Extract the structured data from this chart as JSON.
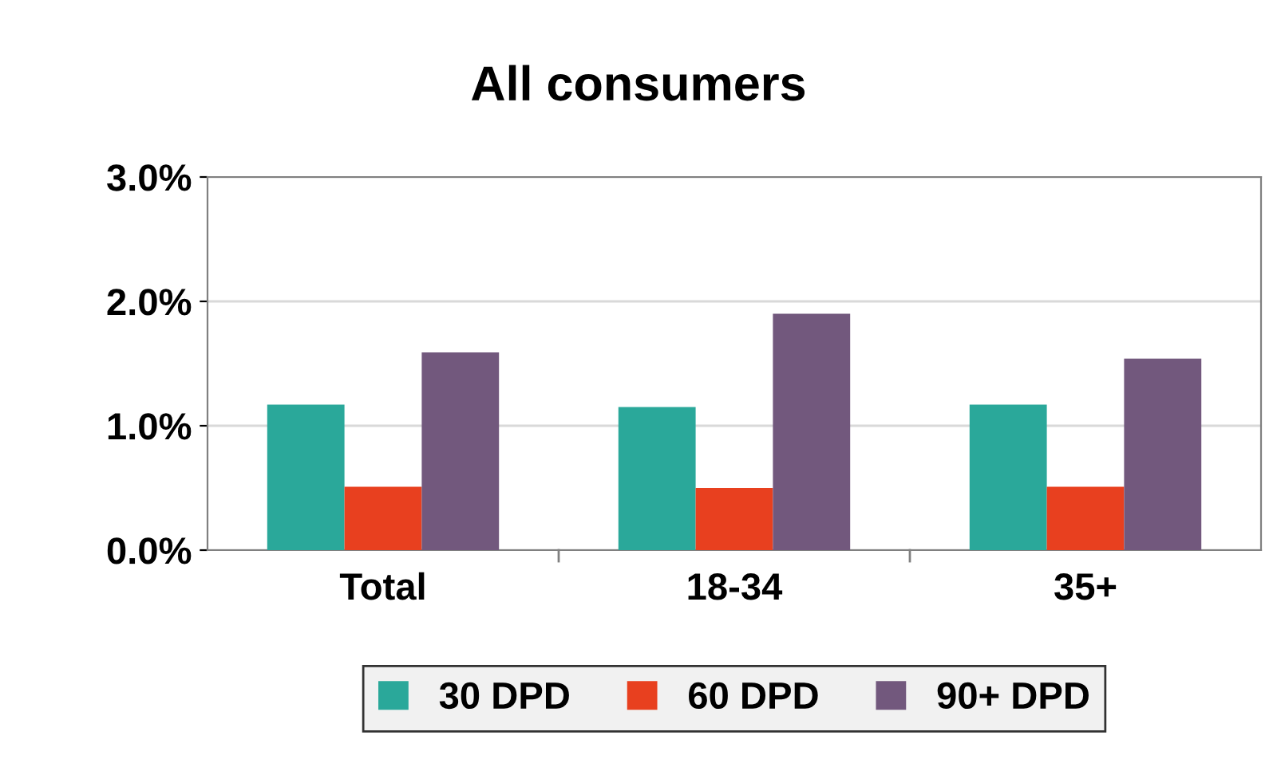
{
  "chart_data": {
    "type": "bar",
    "title": "All consumers",
    "categories": [
      "Total",
      "18-34",
      "35+"
    ],
    "series": [
      {
        "name": "30 DPD",
        "color": "#2aa89a",
        "values": [
          1.17,
          1.15,
          1.17
        ]
      },
      {
        "name": "60 DPD",
        "color": "#e8401f",
        "values": [
          0.51,
          0.5,
          0.51
        ]
      },
      {
        "name": "90+ DPD",
        "color": "#72587d",
        "values": [
          1.59,
          1.9,
          1.54
        ]
      }
    ],
    "ylim": [
      0,
      3
    ],
    "yticks": [
      {
        "value": 0,
        "label": "0.0%"
      },
      {
        "value": 1,
        "label": "1.0%"
      },
      {
        "value": 2,
        "label": "2.0%"
      },
      {
        "value": 3,
        "label": "3.0%"
      }
    ],
    "grid": "y",
    "legend": "bottom"
  }
}
